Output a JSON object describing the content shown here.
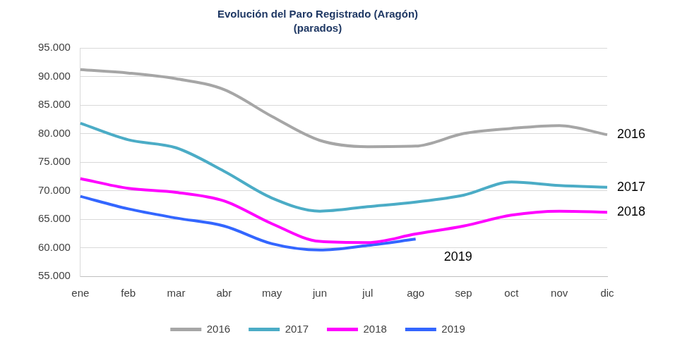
{
  "chart_data": {
    "type": "line",
    "title": "Evolución del Paro Registrado (Aragón)",
    "subtitle": "(parados)",
    "categories": [
      "ene",
      "feb",
      "mar",
      "abr",
      "may",
      "jun",
      "jul",
      "ago",
      "sep",
      "oct",
      "nov",
      "dic"
    ],
    "series": [
      {
        "name": "2016",
        "color": "#a6a6a6",
        "values": [
          91200,
          90600,
          89600,
          87700,
          83000,
          78800,
          77700,
          77800,
          80000,
          80900,
          81400,
          79800
        ]
      },
      {
        "name": "2017",
        "color": "#4bacc6",
        "values": [
          81800,
          78900,
          77500,
          73400,
          68700,
          66400,
          67200,
          68000,
          69200,
          71500,
          70900,
          70600
        ]
      },
      {
        "name": "2018",
        "color": "#ff00ff",
        "values": [
          72100,
          70400,
          69700,
          68200,
          64200,
          61100,
          60900,
          62400,
          63800,
          65700,
          66400,
          66200
        ]
      },
      {
        "name": "2019",
        "color": "#3366ff",
        "values": [
          69000,
          66800,
          65200,
          63800,
          60700,
          59600,
          60400,
          61500,
          null,
          null,
          null,
          null
        ]
      }
    ],
    "ylim": [
      55000,
      95000
    ],
    "yticks": [
      {
        "value": 55000,
        "label": "55.000"
      },
      {
        "value": 60000,
        "label": "60.000"
      },
      {
        "value": 65000,
        "label": "65.000"
      },
      {
        "value": 70000,
        "label": "70.000"
      },
      {
        "value": 75000,
        "label": "75.000"
      },
      {
        "value": 80000,
        "label": "80.000"
      },
      {
        "value": 85000,
        "label": "85.000"
      },
      {
        "value": 90000,
        "label": "90.000"
      },
      {
        "value": 95000,
        "label": "95.000"
      }
    ],
    "grid": true,
    "legend": "bottom"
  }
}
